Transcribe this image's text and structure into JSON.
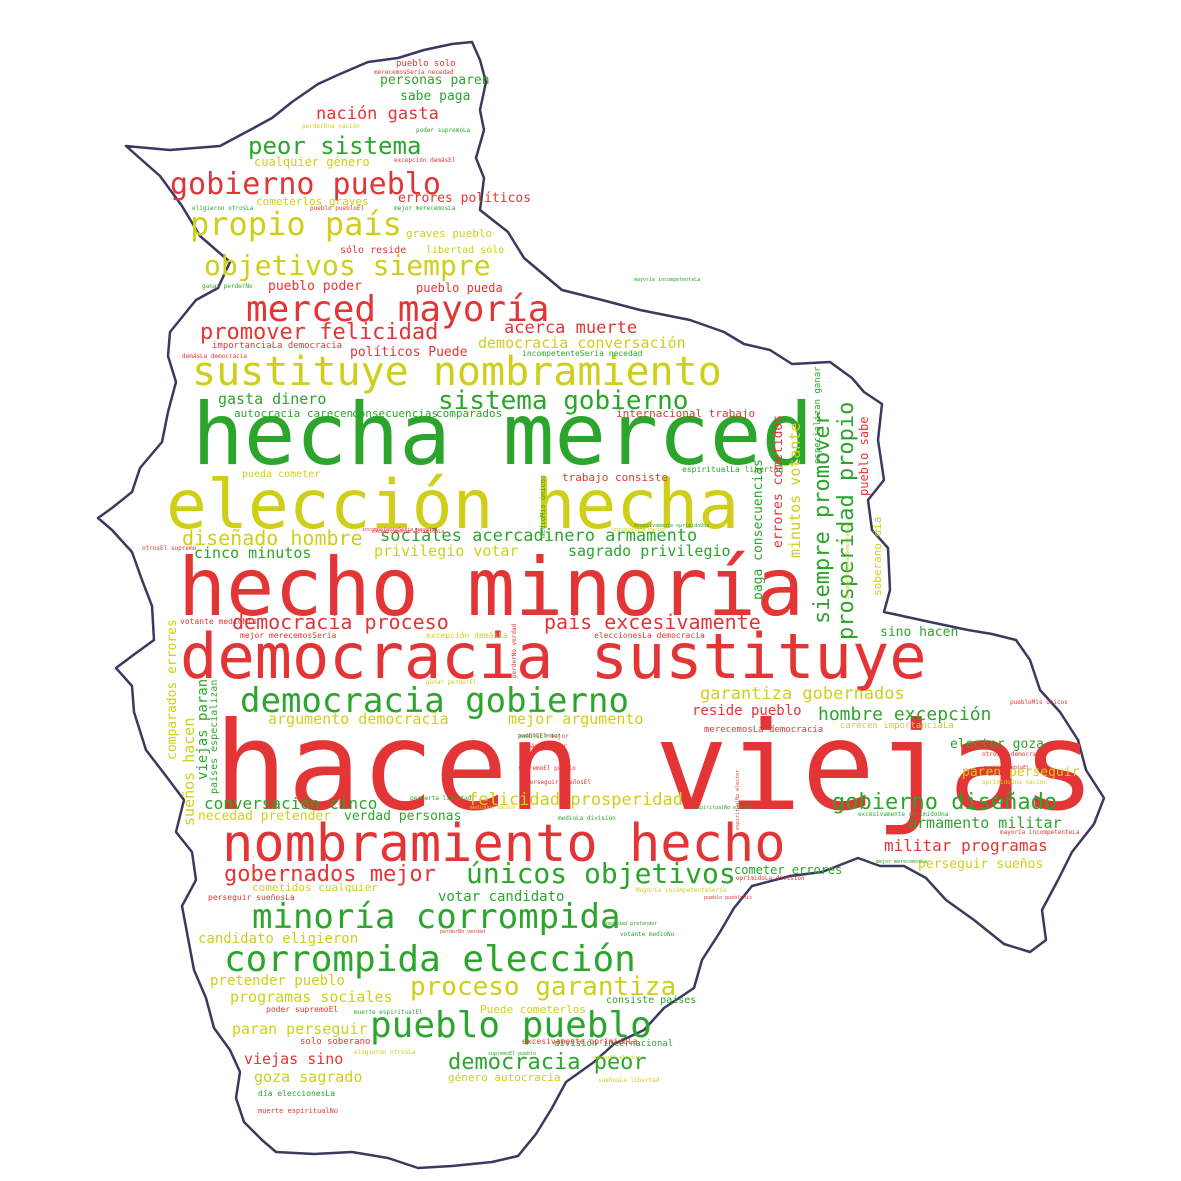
{
  "colors": {
    "red": "#e33535",
    "green": "#2ca52c",
    "yellow": "#cfcf1a",
    "outline": "#3a3a5e"
  },
  "words": [
    {
      "text": "hacen viejas",
      "color": "red",
      "weight": 6
    },
    {
      "text": "hecho minoría",
      "color": "red",
      "weight": 5
    },
    {
      "text": "hecha merced",
      "color": "green",
      "weight": 5
    },
    {
      "text": "elección hecha",
      "color": "yellow",
      "weight": 5
    },
    {
      "text": "democracia sustituye",
      "color": "red",
      "weight": 5
    },
    {
      "text": "nombramiento hecho",
      "color": "red",
      "weight": 5
    },
    {
      "text": "sustituye nombramiento",
      "color": "yellow",
      "weight": 4
    },
    {
      "text": "merced mayoría",
      "color": "red",
      "weight": 4
    },
    {
      "text": "gobierno pueblo",
      "color": "red",
      "weight": 4
    },
    {
      "text": "propio país",
      "color": "yellow",
      "weight": 4
    },
    {
      "text": "democracia gobierno",
      "color": "green",
      "weight": 4
    },
    {
      "text": "minoría corrompida",
      "color": "green",
      "weight": 4
    },
    {
      "text": "corrompida elección",
      "color": "green",
      "weight": 4
    },
    {
      "text": "pueblo pueblo",
      "color": "green",
      "weight": 4
    },
    {
      "text": "peor sistema",
      "color": "green",
      "weight": 3
    },
    {
      "text": "objetivos siempre",
      "color": "yellow",
      "weight": 3
    },
    {
      "text": "sistema gobierno",
      "color": "green",
      "weight": 3
    },
    {
      "text": "únicos objetivos",
      "color": "green",
      "weight": 3
    },
    {
      "text": "proceso garantiza",
      "color": "yellow",
      "weight": 3
    },
    {
      "text": "promover felicidad",
      "color": "red",
      "weight": 3
    },
    {
      "text": "gobernados mejor",
      "color": "red",
      "weight": 3
    },
    {
      "text": "democracia peor",
      "color": "green",
      "weight": 3
    },
    {
      "text": "siempre promover",
      "color": "green",
      "weight": 3
    },
    {
      "text": "prosperidad propio",
      "color": "green",
      "weight": 3
    },
    {
      "text": "democracia proceso",
      "color": "red",
      "weight": 3
    },
    {
      "text": "país excesivamente",
      "color": "red",
      "weight": 3
    },
    {
      "text": "gobierno diseñado",
      "color": "green",
      "weight": 3
    },
    {
      "text": "diseñado hombre",
      "color": "yellow",
      "weight": 3
    },
    {
      "text": "sociales acercadinero armamento",
      "color": "green",
      "weight": 2
    },
    {
      "text": "nación gasta",
      "color": "red",
      "weight": 2
    },
    {
      "text": "acerca muerte",
      "color": "red",
      "weight": 2
    },
    {
      "text": "democracia conversación",
      "color": "yellow",
      "weight": 2
    },
    {
      "text": "gasta dinero",
      "color": "green",
      "weight": 2
    },
    {
      "text": "cinco minutos",
      "color": "green",
      "weight": 2
    },
    {
      "text": "privilegio votar",
      "color": "yellow",
      "weight": 2
    },
    {
      "text": "sagrado privilegio",
      "color": "green",
      "weight": 2
    },
    {
      "text": "garantiza gobernados",
      "color": "yellow",
      "weight": 2
    },
    {
      "text": "hombre excepción",
      "color": "green",
      "weight": 2
    },
    {
      "text": "argumento democracia",
      "color": "yellow",
      "weight": 2
    },
    {
      "text": "mejor argumento",
      "color": "yellow",
      "weight": 2
    },
    {
      "text": "reside pueblo",
      "color": "red",
      "weight": 2
    },
    {
      "text": "conversación cinco",
      "color": "green",
      "weight": 2
    },
    {
      "text": "felicidad prosperidad",
      "color": "yellow",
      "weight": 2
    },
    {
      "text": "armamento militar",
      "color": "green",
      "weight": 2
    },
    {
      "text": "militar programas",
      "color": "red",
      "weight": 2
    },
    {
      "text": "votar candidato",
      "color": "green",
      "weight": 2
    },
    {
      "text": "candidato eligieron",
      "color": "yellow",
      "weight": 2
    },
    {
      "text": "pretender pueblo",
      "color": "yellow",
      "weight": 2
    },
    {
      "text": "programas sociales",
      "color": "yellow",
      "weight": 2
    },
    {
      "text": "paran perseguir",
      "color": "yellow",
      "weight": 2
    },
    {
      "text": "viejas sino",
      "color": "red",
      "weight": 2
    },
    {
      "text": "goza sagrado",
      "color": "yellow",
      "weight": 2
    },
    {
      "text": "minutos votante",
      "color": "yellow",
      "weight": 2
    },
    {
      "text": "errores cometidos",
      "color": "red",
      "weight": 2
    },
    {
      "text": "paga consecuencias",
      "color": "green",
      "weight": 2
    },
    {
      "text": "sueños hacen",
      "color": "yellow",
      "weight": 2
    },
    {
      "text": "viejas paran",
      "color": "green",
      "weight": 2
    },
    {
      "text": "sabe paga",
      "color": "green",
      "weight": 2
    },
    {
      "text": "personas paren",
      "color": "green",
      "weight": 2
    },
    {
      "text": "pueblo poder",
      "color": "red",
      "weight": 2
    },
    {
      "text": "pueblo pueda",
      "color": "red",
      "weight": 2
    },
    {
      "text": "políticos Puede",
      "color": "red",
      "weight": 2
    },
    {
      "text": "errores políticos",
      "color": "red",
      "weight": 2
    },
    {
      "text": "internacional trabajo",
      "color": "red",
      "weight": 1
    },
    {
      "text": "pueblo sabe",
      "color": "red",
      "weight": 2
    },
    {
      "text": "soberano día",
      "color": "yellow",
      "weight": 1
    },
    {
      "text": "sino hacen",
      "color": "green",
      "weight": 2
    },
    {
      "text": "elector goza",
      "color": "green",
      "weight": 2
    },
    {
      "text": "paren perseguir",
      "color": "yellow",
      "weight": 2
    },
    {
      "text": "perseguir sueños",
      "color": "yellow",
      "weight": 2
    },
    {
      "text": "cometer errores",
      "color": "green",
      "weight": 2
    },
    {
      "text": "necedad pretender",
      "color": "yellow",
      "weight": 2
    },
    {
      "text": "verdad personas",
      "color": "green",
      "weight": 2
    },
    {
      "text": "comparados errores",
      "color": "yellow",
      "weight": 2
    },
    {
      "text": "países especializan",
      "color": "green",
      "weight": 1
    },
    {
      "text": "trabajo consiste",
      "color": "red",
      "weight": 1
    },
    {
      "text": "cualquier género",
      "color": "yellow",
      "weight": 1
    },
    {
      "text": "cometerlos graves",
      "color": "yellow",
      "weight": 1
    },
    {
      "text": "graves pueblo",
      "color": "yellow",
      "weight": 1
    },
    {
      "text": "sólo reside",
      "color": "red",
      "weight": 1
    },
    {
      "text": "libertad sólo",
      "color": "yellow",
      "weight": 1
    },
    {
      "text": "importanciaLa democracia",
      "color": "red",
      "weight": 1
    },
    {
      "text": "autocracia carecen",
      "color": "green",
      "weight": 1
    },
    {
      "text": "consecuencias",
      "color": "green",
      "weight": 1
    },
    {
      "text": "comparados",
      "color": "green",
      "weight": 1
    },
    {
      "text": "incompetenteSería necedad",
      "color": "green",
      "weight": 1
    },
    {
      "text": "pueda cometer",
      "color": "yellow",
      "weight": 1
    },
    {
      "text": "cometidos cualquier",
      "color": "yellow",
      "weight": 1
    },
    {
      "text": "perseguir sueñosLa",
      "color": "red",
      "weight": 1
    },
    {
      "text": "Puede cometerlos",
      "color": "yellow",
      "weight": 1
    },
    {
      "text": "consiste países",
      "color": "green",
      "weight": 1
    },
    {
      "text": "poder supremoEl",
      "color": "red",
      "weight": 1
    },
    {
      "text": "solo soberano",
      "color": "red",
      "weight": 1
    },
    {
      "text": "división internacional",
      "color": "green",
      "weight": 1
    },
    {
      "text": "género autocracia",
      "color": "yellow",
      "weight": 1
    },
    {
      "text": "carecen importanciaLa",
      "color": "yellow",
      "weight": 1
    },
    {
      "text": "merecemosLa democracia",
      "color": "red",
      "weight": 1
    },
    {
      "text": "especializan ganar",
      "color": "green",
      "weight": 1
    },
    {
      "text": "espiritualLa libertad",
      "color": "green",
      "weight": 1
    },
    {
      "text": "mejor merecemosSería",
      "color": "red",
      "weight": 1
    },
    {
      "text": "votante medioMis",
      "color": "red",
      "weight": 1
    },
    {
      "text": "excepción demásLa",
      "color": "yellow",
      "weight": 1
    },
    {
      "text": "eleccionesLa democracia",
      "color": "red",
      "weight": 1
    },
    {
      "text": "excesivamente oprimidoLa",
      "color": "red",
      "weight": 1
    },
    {
      "text": "día eleccionesLa",
      "color": "green",
      "weight": 1
    },
    {
      "text": "muerte espiritualNo",
      "color": "red",
      "weight": 1
    },
    {
      "text": "pueblo solo",
      "color": "red",
      "weight": 1
    },
    {
      "text": "merecemosSería necedad",
      "color": "red",
      "weight": 1
    },
    {
      "text": "poder supremoLa",
      "color": "green",
      "weight": 1
    },
    {
      "text": "excepción demásEl",
      "color": "red",
      "weight": 1
    },
    {
      "text": "eligieron otrosLa",
      "color": "green",
      "weight": 1
    },
    {
      "text": "pueblo puebloEl",
      "color": "red",
      "weight": 1
    },
    {
      "text": "mejor merecemosLa",
      "color": "green",
      "weight": 1
    },
    {
      "text": "ganar perderNo",
      "color": "green",
      "weight": 1
    },
    {
      "text": "demásLa democracia",
      "color": "red",
      "weight": 1
    },
    {
      "text": "perderUna nación",
      "color": "yellow",
      "weight": 1
    },
    {
      "text": "supremoEl pueblo",
      "color": "red",
      "weight": 1
    },
    {
      "text": "puebloEl mejor",
      "color": "red",
      "weight": 1
    },
    {
      "text": "incompetenteSería necedad",
      "color": "red",
      "weight": 1
    },
    {
      "text": "mayoría incompetenteLa",
      "color": "red",
      "weight": 1
    },
    {
      "text": "otrosLa democracia",
      "color": "red",
      "weight": 1
    },
    {
      "text": "oprimidoUna nación",
      "color": "yellow",
      "weight": 1
    },
    {
      "text": "puebloMis únicos",
      "color": "red",
      "weight": 1
    },
    {
      "text": "medioMis únicos",
      "color": "green",
      "weight": 1
    },
    {
      "text": "oprimidoLa división",
      "color": "red",
      "weight": 1
    },
    {
      "text": "excesivamente oprimidoUna",
      "color": "green",
      "weight": 1
    },
    {
      "text": "Mayoría incompetenteSería",
      "color": "yellow",
      "weight": 1
    },
    {
      "text": "mayoría incompetenteLa",
      "color": "green",
      "weight": 1
    },
    {
      "text": "permerta libertad",
      "color": "green",
      "weight": 1
    },
    {
      "text": "medioLa división",
      "color": "green",
      "weight": 1
    },
    {
      "text": "supremoEl pueblo",
      "color": "green",
      "weight": 1
    },
    {
      "text": "perseguir sueñosEl",
      "color": "red",
      "weight": 1
    },
    {
      "text": "sueñosLa libertad",
      "color": "yellow",
      "weight": 1
    },
    {
      "text": "eligieron otrosLa",
      "color": "yellow",
      "weight": 1
    },
    {
      "text": "muerte espiritualEl",
      "color": "green",
      "weight": 1
    },
    {
      "text": "votante medioNo",
      "color": "green",
      "weight": 1
    },
    {
      "text": "excesivamente oprimidoLa",
      "color": "red",
      "weight": 1
    },
    {
      "text": "perderNo verdad",
      "color": "red",
      "weight": 1
    },
    {
      "text": "puebloEl mejor",
      "color": "green",
      "weight": 1
    },
    {
      "text": "demásEl mejor",
      "color": "red",
      "weight": 1
    },
    {
      "text": "medioUna nación",
      "color": "yellow",
      "weight": 1
    },
    {
      "text": "espiritualNo elector",
      "color": "green",
      "weight": 1
    },
    {
      "text": "excesivamente oprimidoUna",
      "color": "green",
      "weight": 1
    },
    {
      "text": "otrosEl supremo",
      "color": "red",
      "weight": 1
    },
    {
      "text": "incompetenteLa democracia",
      "color": "yellow",
      "weight": 1
    },
    {
      "text": "oprimidoUna nación",
      "color": "yellow",
      "weight": 1
    },
    {
      "text": "espiritualNo elector",
      "color": "red",
      "weight": 1
    },
    {
      "text": "ganar perderEl",
      "color": "yellow",
      "weight": 1
    },
    {
      "text": "perderNo verdad",
      "color": "red",
      "weight": 1
    },
    {
      "text": "necedad pretender",
      "color": "green",
      "weight": 1
    },
    {
      "text": "mejor merecemosLa",
      "color": "green",
      "weight": 1
    },
    {
      "text": "pueblo puebloEl",
      "color": "red",
      "weight": 1
    },
    {
      "text": "sueñosEl elector",
      "color": "yellow",
      "weight": 1
    },
    {
      "text": "pueblo puebloMis",
      "color": "red",
      "weight": 1
    }
  ]
}
